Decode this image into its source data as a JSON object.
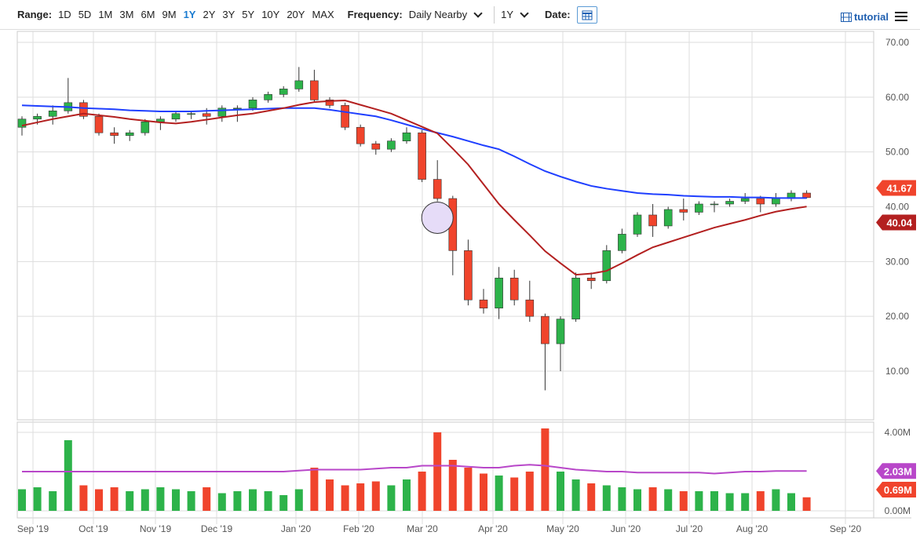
{
  "toolbar": {
    "range_label": "Range:",
    "ranges": [
      "1D",
      "5D",
      "1M",
      "3M",
      "6M",
      "9M",
      "1Y",
      "2Y",
      "3Y",
      "5Y",
      "10Y",
      "20Y",
      "MAX"
    ],
    "active_range": "1Y",
    "frequency_label": "Frequency:",
    "frequency_value": "Daily Nearby",
    "period_value": "1Y",
    "date_label": "Date:",
    "tutorial_label": "tutorial"
  },
  "colors": {
    "up": "#2db34a",
    "down": "#f0442c",
    "ma_blue": "#1f3fff",
    "ma_red": "#b32020",
    "vol_ma": "#b847c9",
    "accent": "#1a7bd0"
  },
  "chart_data": {
    "type": "candlestick",
    "x_tick_labels": [
      "Sep '19",
      "Oct '19",
      "Nov '19",
      "Dec '19",
      "Jan '20",
      "Feb '20",
      "Mar '20",
      "Apr '20",
      "May '20",
      "Jun '20",
      "Jul '20",
      "Aug '20",
      "Sep '20"
    ],
    "y_ticks": [
      70,
      60,
      50,
      40,
      30,
      20,
      10
    ],
    "y_tick_labels": [
      "70.00",
      "60.00",
      "50.00",
      "40.00",
      "30.00",
      "20.00",
      "10.00"
    ],
    "ylim": [
      3,
      72
    ],
    "last_price_label": "41.67",
    "ma_red_label": "40.04",
    "grid": true,
    "weeks": [
      "2019-08-26",
      "2019-09-02",
      "2019-09-09",
      "2019-09-16",
      "2019-09-23",
      "2019-09-30",
      "2019-10-07",
      "2019-10-14",
      "2019-10-21",
      "2019-10-28",
      "2019-11-04",
      "2019-11-11",
      "2019-11-18",
      "2019-11-25",
      "2019-12-02",
      "2019-12-09",
      "2019-12-16",
      "2019-12-23",
      "2019-12-30",
      "2020-01-06",
      "2020-01-13",
      "2020-01-20",
      "2020-01-27",
      "2020-02-03",
      "2020-02-10",
      "2020-02-17",
      "2020-02-24",
      "2020-03-02",
      "2020-03-09",
      "2020-03-16",
      "2020-03-23",
      "2020-03-30",
      "2020-04-06",
      "2020-04-13",
      "2020-04-20",
      "2020-04-27",
      "2020-05-04",
      "2020-05-11",
      "2020-05-18",
      "2020-05-25",
      "2020-06-01",
      "2020-06-08",
      "2020-06-15",
      "2020-06-22",
      "2020-06-29",
      "2020-07-06",
      "2020-07-13",
      "2020-07-20",
      "2020-07-27",
      "2020-08-03",
      "2020-08-10",
      "2020-08-17"
    ],
    "ohlc": [
      [
        54.5,
        56.5,
        53,
        56
      ],
      [
        56,
        57,
        55,
        56.5
      ],
      [
        56.5,
        58.5,
        55,
        57.5
      ],
      [
        57.5,
        63.5,
        57,
        59
      ],
      [
        59,
        59.5,
        56,
        56.5
      ],
      [
        56.5,
        57,
        53,
        53.5
      ],
      [
        53.5,
        54.5,
        51.5,
        53
      ],
      [
        53,
        54,
        52,
        53.5
      ],
      [
        53.5,
        56,
        53,
        55.5
      ],
      [
        55.5,
        56.5,
        54,
        56
      ],
      [
        56,
        57.5,
        55.5,
        57
      ],
      [
        57,
        57.5,
        56,
        57
      ],
      [
        57,
        58,
        55,
        56.5
      ],
      [
        56.5,
        58.5,
        55.5,
        58
      ],
      [
        58,
        58.5,
        55.5,
        58
      ],
      [
        58,
        60,
        57.5,
        59.5
      ],
      [
        59.5,
        61,
        59,
        60.5
      ],
      [
        60.5,
        62,
        60,
        61.5
      ],
      [
        61.5,
        65.5,
        61,
        63
      ],
      [
        63,
        65,
        59,
        59.5
      ],
      [
        59.5,
        60,
        58,
        58.5
      ],
      [
        58.5,
        59,
        54,
        54.5
      ],
      [
        54.5,
        55,
        51,
        51.5
      ],
      [
        51.5,
        52,
        49.5,
        50.5
      ],
      [
        50.5,
        52.5,
        50,
        52
      ],
      [
        52,
        54.5,
        51.5,
        53.5
      ],
      [
        53.5,
        54,
        44.5,
        45
      ],
      [
        45,
        48.5,
        41,
        41.5
      ],
      [
        41.5,
        42,
        27.5,
        32
      ],
      [
        32,
        34,
        22,
        23
      ],
      [
        23,
        25,
        20.5,
        21.5
      ],
      [
        21.5,
        29,
        19.5,
        27
      ],
      [
        27,
        28.5,
        22,
        23
      ],
      [
        23,
        26.5,
        19,
        20
      ],
      [
        20,
        20.5,
        6.5,
        15
      ],
      [
        15,
        20,
        10,
        19.5
      ],
      [
        19.5,
        28,
        19,
        27
      ],
      [
        27,
        28,
        25,
        26.5
      ],
      [
        26.5,
        33,
        26,
        32
      ],
      [
        32,
        36,
        31.5,
        35
      ],
      [
        35,
        39,
        34.5,
        38.5
      ],
      [
        38.5,
        40.5,
        34.5,
        36.5
      ],
      [
        36.5,
        40,
        36,
        39.5
      ],
      [
        39.5,
        41.5,
        37.5,
        39
      ],
      [
        39,
        41,
        38.5,
        40.5
      ],
      [
        40.5,
        41,
        39,
        40.5
      ],
      [
        40.5,
        41.5,
        40,
        41
      ],
      [
        41,
        42.5,
        40.5,
        41.5
      ],
      [
        41.5,
        42,
        39,
        40.5
      ],
      [
        40.5,
        42.5,
        40,
        41.5
      ],
      [
        41.5,
        43,
        41,
        42.5
      ],
      [
        42.5,
        43,
        41.5,
        41.67
      ]
    ],
    "ma_blue": [
      58.5,
      58.4,
      58.3,
      58.2,
      58.0,
      57.9,
      57.8,
      57.6,
      57.5,
      57.4,
      57.4,
      57.4,
      57.5,
      57.6,
      57.7,
      57.8,
      57.9,
      58.0,
      58.0,
      58.0,
      57.7,
      57.3,
      56.9,
      56.5,
      55.8,
      55.0,
      54.2,
      53.5,
      52.8,
      52.0,
      51.2,
      50.5,
      49.2,
      47.8,
      46.5,
      45.5,
      44.6,
      43.8,
      43.3,
      42.9,
      42.5,
      42.3,
      42.2,
      42.0,
      41.9,
      41.8,
      41.8,
      41.7,
      41.7,
      41.6,
      41.6,
      41.6
    ],
    "ma_red": [
      54.8,
      55.4,
      56.0,
      56.5,
      57.0,
      56.7,
      56.4,
      56.0,
      55.7,
      55.4,
      55.2,
      55.5,
      55.9,
      56.3,
      56.7,
      57.0,
      57.5,
      58.0,
      58.6,
      59.1,
      59.3,
      59.4,
      58.6,
      57.8,
      57.0,
      55.8,
      54.6,
      53.4,
      50.6,
      47.7,
      44.1,
      40.5,
      37.6,
      34.8,
      31.9,
      29.7,
      27.6,
      27.8,
      28.3,
      29.7,
      31.2,
      32.6,
      33.5,
      34.4,
      35.3,
      36.2,
      36.9,
      37.6,
      38.4,
      39.1,
      39.6,
      40.04
    ],
    "marker": {
      "week": "2020-03-02",
      "price": 38
    },
    "volume": {
      "unit": "M",
      "tick_labels": [
        "4.00M",
        "0.00M"
      ],
      "ma_label": "2.03M",
      "last_label": "0.69M",
      "values": [
        1.1,
        1.2,
        1.0,
        3.6,
        1.3,
        1.1,
        1.2,
        1.0,
        1.1,
        1.2,
        1.1,
        1.0,
        1.2,
        0.9,
        1.0,
        1.1,
        1.0,
        0.8,
        1.1,
        2.2,
        1.6,
        1.3,
        1.4,
        1.5,
        1.3,
        1.6,
        2.0,
        4.0,
        2.6,
        2.2,
        1.9,
        1.8,
        1.7,
        2.0,
        4.2,
        2.0,
        1.6,
        1.4,
        1.3,
        1.2,
        1.1,
        1.2,
        1.1,
        1.0,
        1.0,
        1.0,
        0.9,
        0.9,
        1.0,
        1.1,
        0.9,
        0.69
      ],
      "ma": [
        2.0,
        2.0,
        2.0,
        2.0,
        2.0,
        2.0,
        2.0,
        2.0,
        2.0,
        2.0,
        2.0,
        2.0,
        2.0,
        2.0,
        2.0,
        2.0,
        2.0,
        2.0,
        2.05,
        2.1,
        2.1,
        2.1,
        2.1,
        2.15,
        2.2,
        2.2,
        2.3,
        2.3,
        2.3,
        2.25,
        2.2,
        2.2,
        2.3,
        2.35,
        2.3,
        2.2,
        2.1,
        2.05,
        2.0,
        2.0,
        1.95,
        1.95,
        1.95,
        1.95,
        1.95,
        1.9,
        1.95,
        2.0,
        2.0,
        2.03,
        2.03,
        2.03
      ]
    }
  }
}
